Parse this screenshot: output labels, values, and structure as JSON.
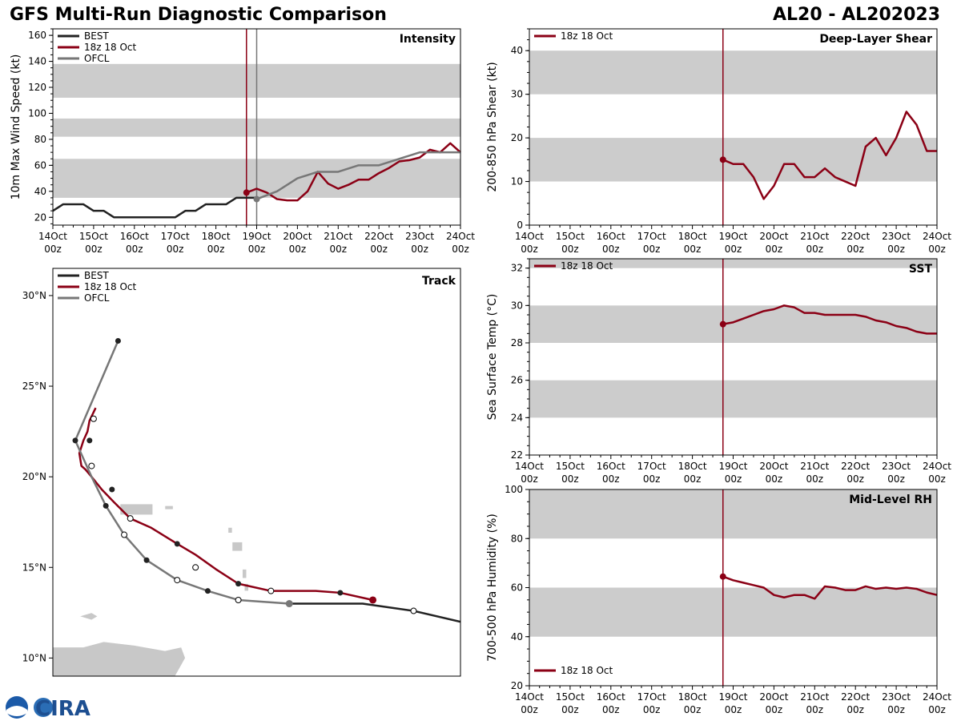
{
  "header": {
    "title_left": "GFS Multi-Run Diagnostic Comparison",
    "title_right": "AL20 - AL202023"
  },
  "logo": {
    "text": "CIRA"
  },
  "colors": {
    "best": "#222222",
    "run": "#8b0015",
    "ofcl": "#777777",
    "band": "#cccccc"
  },
  "time_axis": {
    "dates": [
      "14Oct",
      "15Oct",
      "16Oct",
      "17Oct",
      "18Oct",
      "19Oct",
      "20Oct",
      "21Oct",
      "22Oct",
      "23Oct",
      "24Oct"
    ],
    "hour": "00z",
    "run_time": 4.75
  },
  "chart_data": [
    {
      "id": "intensity",
      "type": "line",
      "title": "Intensity",
      "ylabel": "10m Max Wind Speed (kt)",
      "ylim": [
        14,
        165
      ],
      "yticks": [
        20,
        40,
        60,
        80,
        100,
        120,
        140,
        160
      ],
      "bands": [
        [
          35,
          65
        ],
        [
          82,
          96
        ],
        [
          112,
          138
        ]
      ],
      "legend": [
        "BEST",
        "18z 18 Oct",
        "OFCL"
      ],
      "ofcl_time": 5.0,
      "series": [
        {
          "name": "BEST",
          "x": [
            0,
            0.25,
            0.5,
            0.75,
            1,
            1.25,
            1.5,
            1.75,
            2,
            2.25,
            2.5,
            2.75,
            3,
            3.25,
            3.5,
            3.75,
            4,
            4.25,
            4.5,
            4.75,
            5
          ],
          "y": [
            25,
            30,
            30,
            30,
            25,
            25,
            20,
            20,
            20,
            20,
            20,
            20,
            20,
            25,
            25,
            30,
            30,
            30,
            35,
            35,
            35
          ]
        },
        {
          "name": "18z 18 Oct",
          "x": [
            4.75,
            5,
            5.25,
            5.5,
            5.75,
            6,
            6.25,
            6.5,
            6.75,
            7,
            7.25,
            7.5,
            7.75,
            8,
            8.25,
            8.5,
            8.75,
            9,
            9.25,
            9.5,
            9.75,
            10
          ],
          "y": [
            39,
            42,
            39,
            34,
            33,
            33,
            40,
            55,
            46,
            42,
            45,
            49,
            49,
            54,
            58,
            63,
            64,
            66,
            72,
            70,
            77,
            70
          ]
        },
        {
          "name": "OFCL",
          "x": [
            5,
            5.5,
            6,
            6.5,
            7,
            7.5,
            8,
            9,
            10
          ],
          "y": [
            34,
            40,
            50,
            55,
            55,
            60,
            60,
            70,
            70
          ]
        }
      ]
    },
    {
      "id": "shear",
      "type": "line",
      "title": "Deep-Layer Shear",
      "ylabel": "200-850 hPa Shear (kt)",
      "ylim": [
        0,
        45
      ],
      "yticks": [
        0,
        10,
        20,
        30,
        40
      ],
      "bands": [
        [
          10,
          20
        ],
        [
          30,
          40
        ]
      ],
      "legend": [
        "18z 18 Oct"
      ],
      "series": [
        {
          "name": "18z 18 Oct",
          "x": [
            4.75,
            5,
            5.25,
            5.5,
            5.75,
            6,
            6.25,
            6.5,
            6.75,
            7,
            7.25,
            7.5,
            7.75,
            8,
            8.25,
            8.5,
            8.75,
            9,
            9.25,
            9.5,
            9.75,
            10
          ],
          "y": [
            15,
            14,
            14,
            11,
            6,
            9,
            14,
            14,
            11,
            11,
            13,
            11,
            10,
            9,
            18,
            20,
            16,
            20,
            26,
            23,
            17,
            17
          ]
        }
      ]
    },
    {
      "id": "sst",
      "type": "line",
      "title": "SST",
      "ylabel": "Sea Surface Temp (°C)",
      "ylim": [
        22,
        32.5
      ],
      "yticks": [
        22,
        24,
        26,
        28,
        30,
        32
      ],
      "bands": [
        [
          24,
          26
        ],
        [
          28,
          30
        ],
        [
          32,
          32.5
        ]
      ],
      "legend": [
        "18z 18 Oct"
      ],
      "series": [
        {
          "name": "18z 18 Oct",
          "x": [
            4.75,
            5,
            5.25,
            5.5,
            5.75,
            6,
            6.25,
            6.5,
            6.75,
            7,
            7.25,
            7.5,
            7.75,
            8,
            8.25,
            8.5,
            8.75,
            9,
            9.25,
            9.5,
            9.75,
            10
          ],
          "y": [
            29,
            29.1,
            29.3,
            29.5,
            29.7,
            29.8,
            30,
            29.9,
            29.6,
            29.6,
            29.5,
            29.5,
            29.5,
            29.5,
            29.4,
            29.2,
            29.1,
            28.9,
            28.8,
            28.6,
            28.5,
            28.5
          ]
        }
      ]
    },
    {
      "id": "rh",
      "type": "line",
      "title": "Mid-Level RH",
      "ylabel": "700-500 hPa Humidity (%)",
      "ylim": [
        20,
        100
      ],
      "yticks": [
        20,
        40,
        60,
        80,
        100
      ],
      "bands": [
        [
          40,
          60
        ],
        [
          80,
          100
        ]
      ],
      "legend": [
        "18z 18 Oct"
      ],
      "series": [
        {
          "name": "18z 18 Oct",
          "x": [
            4.75,
            5,
            5.25,
            5.5,
            5.75,
            6,
            6.25,
            6.5,
            6.75,
            7,
            7.25,
            7.5,
            7.75,
            8,
            8.25,
            8.5,
            8.75,
            9,
            9.25,
            9.5,
            9.75,
            10
          ],
          "y": [
            64.5,
            63,
            62,
            61,
            60,
            57,
            56,
            57,
            57,
            55.5,
            60.5,
            60,
            59,
            59,
            60.5,
            59.5,
            60,
            59.5,
            60,
            59.5,
            58,
            57
          ]
        }
      ]
    },
    {
      "id": "track",
      "type": "scatter",
      "title": "Track",
      "lon_range": [
        -70.5,
        -50.5
      ],
      "lat_range": [
        9,
        31.5
      ],
      "yticks": [
        10,
        15,
        20,
        25,
        30
      ],
      "ytick_labels": [
        "10°N",
        "15°N",
        "20°N",
        "25°N",
        "30°N"
      ],
      "legend": [
        "BEST",
        "18z 18 Oct",
        "OFCL"
      ],
      "series": [
        {
          "name": "BEST",
          "lon": [
            -50.5,
            -52.8,
            -55.3,
            -57.3,
            -58.9
          ],
          "lat": [
            12.0,
            12.6,
            13.0,
            13.0,
            13.0
          ],
          "open": [
            -52.8
          ],
          "filled_lon": [],
          "filled_lat": []
        },
        {
          "name": "18z 18 Oct",
          "lon": [
            -54.8,
            -56.4,
            -57.6,
            -58.6,
            -59.8,
            -61.4,
            -62.5,
            -63.5,
            -64.4,
            -65.7,
            -66.7,
            -67.5,
            -68.1,
            -68.6,
            -68.9,
            -69.1,
            -69.2,
            -69.0,
            -68.8,
            -68.7,
            -68.4
          ],
          "lat": [
            13.2,
            13.6,
            13.7,
            13.7,
            13.7,
            14.1,
            14.9,
            15.7,
            16.3,
            17.2,
            17.7,
            18.6,
            19.3,
            20.0,
            20.4,
            20.6,
            21.3,
            22.0,
            22.5,
            23.1,
            23.8
          ],
          "markers": [
            {
              "lon": -54.8,
              "lat": 13.2,
              "kind": "big"
            },
            {
              "lon": -56.4,
              "lat": 13.6,
              "kind": "filled"
            },
            {
              "lon": -59.8,
              "lat": 13.7,
              "kind": "open"
            },
            {
              "lon": -61.4,
              "lat": 14.1,
              "kind": "filled"
            },
            {
              "lon": -63.5,
              "lat": 15.0,
              "kind": "open"
            },
            {
              "lon": -64.4,
              "lat": 16.3,
              "kind": "filled"
            },
            {
              "lon": -66.7,
              "lat": 17.7,
              "kind": "open"
            },
            {
              "lon": -67.6,
              "lat": 19.3,
              "kind": "filled"
            },
            {
              "lon": -68.6,
              "lat": 20.6,
              "kind": "open"
            },
            {
              "lon": -68.7,
              "lat": 22.0,
              "kind": "filled"
            },
            {
              "lon": -68.5,
              "lat": 23.2,
              "kind": "open"
            }
          ]
        },
        {
          "name": "OFCL",
          "lon": [
            -58.9,
            -61.4,
            -62.9,
            -64.4,
            -65.9,
            -67.0,
            -67.9,
            -68.6,
            -69.4,
            -67.3
          ],
          "lat": [
            13.0,
            13.2,
            13.7,
            14.3,
            15.4,
            16.8,
            18.4,
            20.0,
            22.0,
            27.5
          ],
          "markers": [
            {
              "lon": -58.9,
              "lat": 13.0,
              "kind": "big"
            },
            {
              "lon": -61.4,
              "lat": 13.2,
              "kind": "open"
            },
            {
              "lon": -62.9,
              "lat": 13.7,
              "kind": "filled"
            },
            {
              "lon": -64.4,
              "lat": 14.3,
              "kind": "open"
            },
            {
              "lon": -65.9,
              "lat": 15.4,
              "kind": "filled"
            },
            {
              "lon": -67.0,
              "lat": 16.8,
              "kind": "open"
            },
            {
              "lon": -67.9,
              "lat": 18.4,
              "kind": "filled"
            },
            {
              "lon": -69.4,
              "lat": 22.0,
              "kind": "filled"
            },
            {
              "lon": -67.3,
              "lat": 27.5,
              "kind": "filled"
            }
          ]
        }
      ]
    }
  ]
}
